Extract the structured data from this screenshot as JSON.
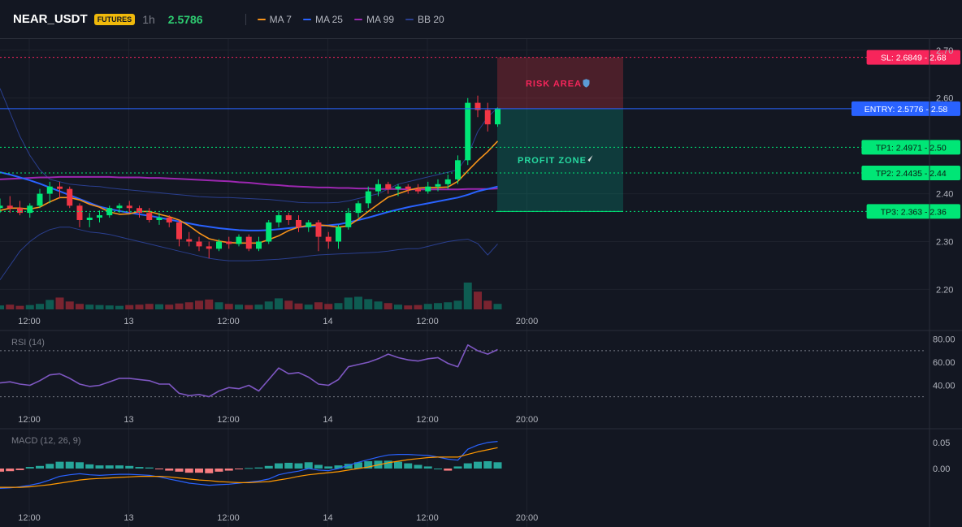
{
  "header": {
    "symbol": "NEAR_USDT",
    "badge": "FUTURES",
    "timeframe": "1h",
    "last_price": "2.5786"
  },
  "legend": [
    {
      "label": "MA 7",
      "color": "#f7931a"
    },
    {
      "label": "MA 25",
      "color": "#2962ff"
    },
    {
      "label": "MA 99",
      "color": "#9c27b0"
    },
    {
      "label": "BB 20",
      "color": "#2a3f8f"
    }
  ],
  "colors": {
    "up": "#26a69a",
    "up_bright": "#00e676",
    "down": "#f23645",
    "background": "#131722"
  },
  "levels": [
    {
      "label": "SL: 2.6849 - 2.68",
      "value": 2.6849,
      "color": "#f7255b",
      "style": "dotted"
    },
    {
      "label": "ENTRY: 2.5776 - 2.58",
      "value": 2.5776,
      "color": "#2962ff",
      "style": "solid"
    },
    {
      "label": "TP1: 2.4971 - 2.50",
      "value": 2.4971,
      "color": "#00e676",
      "style": "dotted"
    },
    {
      "label": "TP2: 2.4435 - 2.44",
      "value": 2.4435,
      "color": "#00e676",
      "style": "dotted"
    },
    {
      "label": "TP3: 2.363 - 2.36",
      "value": 2.363,
      "color": "#00e676",
      "style": "dotted"
    }
  ],
  "zones": {
    "risk_label": "RISK AREA",
    "profit_label": "PROFIT ZONE",
    "risk_range": [
      2.5776,
      2.6849
    ],
    "profit_range": [
      2.363,
      2.5776
    ]
  },
  "time_labels": [
    "12:00",
    "13",
    "12:00",
    "14",
    "12:00",
    "20:00"
  ],
  "time_label_index": [
    0,
    10,
    20,
    30,
    40,
    50
  ],
  "price_ticks": [
    "2.20",
    "2.30",
    "2.40",
    "2.60",
    "2.70"
  ],
  "rsi": {
    "title": "RSI (14)",
    "ticks": [
      "40.00",
      "60.00",
      "80.00"
    ],
    "levels": [
      30,
      70
    ]
  },
  "macd": {
    "title": "MACD (12, 26, 9)",
    "ticks": [
      "0.00",
      "0.05"
    ]
  },
  "chart_data": {
    "type": "candlestick",
    "title": "",
    "ylim": [
      2.16,
      2.72
    ],
    "candles": [
      {
        "o": 2.37,
        "h": 2.39,
        "l": 2.36,
        "c": 2.375
      },
      {
        "o": 2.375,
        "h": 2.395,
        "l": 2.36,
        "c": 2.37
      },
      {
        "o": 2.37,
        "h": 2.385,
        "l": 2.355,
        "c": 2.36
      },
      {
        "o": 2.36,
        "h": 2.38,
        "l": 2.35,
        "c": 2.375
      },
      {
        "o": 2.375,
        "h": 2.41,
        "l": 2.37,
        "c": 2.4
      },
      {
        "o": 2.4,
        "h": 2.425,
        "l": 2.38,
        "c": 2.415
      },
      {
        "o": 2.415,
        "h": 2.425,
        "l": 2.39,
        "c": 2.41
      },
      {
        "o": 2.41,
        "h": 2.415,
        "l": 2.37,
        "c": 2.375
      },
      {
        "o": 2.375,
        "h": 2.38,
        "l": 2.33,
        "c": 2.345
      },
      {
        "o": 2.345,
        "h": 2.36,
        "l": 2.33,
        "c": 2.35
      },
      {
        "o": 2.35,
        "h": 2.365,
        "l": 2.34,
        "c": 2.355
      },
      {
        "o": 2.355,
        "h": 2.375,
        "l": 2.35,
        "c": 2.37
      },
      {
        "o": 2.37,
        "h": 2.38,
        "l": 2.36,
        "c": 2.375
      },
      {
        "o": 2.375,
        "h": 2.385,
        "l": 2.36,
        "c": 2.37
      },
      {
        "o": 2.37,
        "h": 2.375,
        "l": 2.35,
        "c": 2.36
      },
      {
        "o": 2.36,
        "h": 2.37,
        "l": 2.34,
        "c": 2.345
      },
      {
        "o": 2.345,
        "h": 2.36,
        "l": 2.335,
        "c": 2.35
      },
      {
        "o": 2.35,
        "h": 2.355,
        "l": 2.33,
        "c": 2.34
      },
      {
        "o": 2.34,
        "h": 2.345,
        "l": 2.29,
        "c": 2.305
      },
      {
        "o": 2.305,
        "h": 2.32,
        "l": 2.29,
        "c": 2.3
      },
      {
        "o": 2.3,
        "h": 2.31,
        "l": 2.28,
        "c": 2.29
      },
      {
        "o": 2.29,
        "h": 2.3,
        "l": 2.265,
        "c": 2.285
      },
      {
        "o": 2.285,
        "h": 2.305,
        "l": 2.28,
        "c": 2.3
      },
      {
        "o": 2.3,
        "h": 2.31,
        "l": 2.285,
        "c": 2.295
      },
      {
        "o": 2.295,
        "h": 2.315,
        "l": 2.29,
        "c": 2.31
      },
      {
        "o": 2.31,
        "h": 2.315,
        "l": 2.28,
        "c": 2.285
      },
      {
        "o": 2.285,
        "h": 2.31,
        "l": 2.28,
        "c": 2.3
      },
      {
        "o": 2.3,
        "h": 2.345,
        "l": 2.295,
        "c": 2.34
      },
      {
        "o": 2.34,
        "h": 2.365,
        "l": 2.33,
        "c": 2.355
      },
      {
        "o": 2.355,
        "h": 2.36,
        "l": 2.335,
        "c": 2.345
      },
      {
        "o": 2.345,
        "h": 2.355,
        "l": 2.32,
        "c": 2.33
      },
      {
        "o": 2.33,
        "h": 2.345,
        "l": 2.32,
        "c": 2.34
      },
      {
        "o": 2.34,
        "h": 2.345,
        "l": 2.28,
        "c": 2.31
      },
      {
        "o": 2.31,
        "h": 2.32,
        "l": 2.285,
        "c": 2.3
      },
      {
        "o": 2.3,
        "h": 2.335,
        "l": 2.285,
        "c": 2.33
      },
      {
        "o": 2.33,
        "h": 2.37,
        "l": 2.325,
        "c": 2.36
      },
      {
        "o": 2.36,
        "h": 2.385,
        "l": 2.35,
        "c": 2.38
      },
      {
        "o": 2.38,
        "h": 2.415,
        "l": 2.37,
        "c": 2.405
      },
      {
        "o": 2.405,
        "h": 2.43,
        "l": 2.395,
        "c": 2.42
      },
      {
        "o": 2.42,
        "h": 2.425,
        "l": 2.4,
        "c": 2.41
      },
      {
        "o": 2.41,
        "h": 2.42,
        "l": 2.395,
        "c": 2.415
      },
      {
        "o": 2.415,
        "h": 2.42,
        "l": 2.4,
        "c": 2.41
      },
      {
        "o": 2.41,
        "h": 2.42,
        "l": 2.4,
        "c": 2.405
      },
      {
        "o": 2.405,
        "h": 2.425,
        "l": 2.4,
        "c": 2.415
      },
      {
        "o": 2.415,
        "h": 2.43,
        "l": 2.405,
        "c": 2.42
      },
      {
        "o": 2.42,
        "h": 2.44,
        "l": 2.41,
        "c": 2.43
      },
      {
        "o": 2.43,
        "h": 2.48,
        "l": 2.42,
        "c": 2.47
      },
      {
        "o": 2.47,
        "h": 2.6,
        "l": 2.46,
        "c": 2.59
      },
      {
        "o": 2.59,
        "h": 2.605,
        "l": 2.56,
        "c": 2.575
      },
      {
        "o": 2.575,
        "h": 2.59,
        "l": 2.53,
        "c": 2.545
      },
      {
        "o": 2.545,
        "h": 2.58,
        "l": 2.54,
        "c": 2.5786
      }
    ],
    "volume": [
      10,
      12,
      9,
      11,
      14,
      24,
      30,
      20,
      14,
      12,
      11,
      10,
      9,
      11,
      12,
      14,
      13,
      12,
      15,
      18,
      22,
      25,
      18,
      14,
      12,
      11,
      12,
      20,
      28,
      22,
      15,
      12,
      18,
      14,
      16,
      30,
      32,
      26,
      20,
      16,
      12,
      10,
      11,
      14,
      16,
      18,
      22,
      68,
      45,
      22,
      14
    ],
    "ma7": [
      2.365,
      2.37,
      2.37,
      2.368,
      2.372,
      2.383,
      2.392,
      2.392,
      2.387,
      2.378,
      2.372,
      2.362,
      2.357,
      2.358,
      2.363,
      2.363,
      2.357,
      2.352,
      2.345,
      2.333,
      2.318,
      2.306,
      2.301,
      2.298,
      2.297,
      2.297,
      2.297,
      2.304,
      2.312,
      2.323,
      2.33,
      2.334,
      2.335,
      2.333,
      2.33,
      2.333,
      2.347,
      2.363,
      2.378,
      2.393,
      2.4,
      2.407,
      2.412,
      2.413,
      2.413,
      2.414,
      2.426,
      2.448,
      2.469,
      2.488,
      2.51
    ],
    "ma25": [
      2.445,
      2.44,
      2.434,
      2.428,
      2.421,
      2.413,
      2.405,
      2.397,
      2.389,
      2.381,
      2.373,
      2.368,
      2.364,
      2.36,
      2.357,
      2.354,
      2.35,
      2.346,
      2.342,
      2.338,
      2.334,
      2.331,
      2.328,
      2.326,
      2.324,
      2.323,
      2.323,
      2.324,
      2.326,
      2.328,
      2.33,
      2.332,
      2.333,
      2.334,
      2.336,
      2.34,
      2.345,
      2.35,
      2.356,
      2.362,
      2.367,
      2.372,
      2.376,
      2.38,
      2.384,
      2.388,
      2.392,
      2.398,
      2.405,
      2.41,
      2.415
    ],
    "ma99": [
      2.43,
      2.431,
      2.432,
      2.433,
      2.434,
      2.434,
      2.435,
      2.435,
      2.435,
      2.435,
      2.435,
      2.435,
      2.434,
      2.434,
      2.434,
      2.433,
      2.433,
      2.432,
      2.431,
      2.43,
      2.429,
      2.428,
      2.427,
      2.426,
      2.424,
      2.423,
      2.421,
      2.419,
      2.418,
      2.416,
      2.415,
      2.414,
      2.413,
      2.413,
      2.412,
      2.412,
      2.411,
      2.411,
      2.41,
      2.41,
      2.41,
      2.409,
      2.409,
      2.409,
      2.409,
      2.409,
      2.409,
      2.41,
      2.41,
      2.41,
      2.411
    ],
    "bb_upper": [
      2.62,
      2.57,
      2.52,
      2.48,
      2.45,
      2.43,
      2.425,
      2.42,
      2.418,
      2.416,
      2.415,
      2.412,
      2.41,
      2.408,
      2.406,
      2.404,
      2.402,
      2.4,
      2.398,
      2.396,
      2.394,
      2.393,
      2.392,
      2.392,
      2.391,
      2.39,
      2.389,
      2.388,
      2.386,
      2.384,
      2.382,
      2.381,
      2.381,
      2.381,
      2.382,
      2.385,
      2.39,
      2.395,
      2.4,
      2.41,
      2.42,
      2.425,
      2.43,
      2.435,
      2.44,
      2.445,
      2.45,
      2.48,
      2.53,
      2.56,
      2.58
    ],
    "bb_lower": [
      2.22,
      2.25,
      2.28,
      2.3,
      2.315,
      2.325,
      2.33,
      2.33,
      2.325,
      2.32,
      2.318,
      2.315,
      2.31,
      2.305,
      2.3,
      2.295,
      2.29,
      2.285,
      2.28,
      2.275,
      2.27,
      2.265,
      2.262,
      2.26,
      2.26,
      2.26,
      2.261,
      2.262,
      2.263,
      2.265,
      2.267,
      2.27,
      2.272,
      2.273,
      2.274,
      2.275,
      2.276,
      2.277,
      2.278,
      2.28,
      2.283,
      2.285,
      2.285,
      2.29,
      2.295,
      2.3,
      2.303,
      2.305,
      2.296,
      2.272,
      2.295
    ],
    "rsi": [
      42,
      43,
      41,
      40,
      44,
      49,
      50,
      46,
      41,
      39,
      40,
      43,
      46,
      46,
      45,
      44,
      41,
      41,
      33,
      31,
      32,
      30,
      35,
      38,
      37,
      40,
      35,
      45,
      55,
      50,
      51,
      47,
      41,
      40,
      45,
      56,
      58,
      60,
      63,
      67,
      64,
      62,
      61,
      63,
      64,
      59,
      56,
      75,
      70,
      67,
      71
    ],
    "macd": [
      -0.038,
      -0.037,
      -0.035,
      -0.032,
      -0.028,
      -0.022,
      -0.015,
      -0.012,
      -0.01,
      -0.012,
      -0.013,
      -0.012,
      -0.011,
      -0.011,
      -0.012,
      -0.013,
      -0.016,
      -0.02,
      -0.024,
      -0.028,
      -0.03,
      -0.032,
      -0.031,
      -0.03,
      -0.028,
      -0.026,
      -0.024,
      -0.02,
      -0.012,
      -0.008,
      -0.005,
      0.0,
      -0.003,
      -0.004,
      0.0,
      0.006,
      0.012,
      0.017,
      0.022,
      0.026,
      0.027,
      0.027,
      0.026,
      0.025,
      0.022,
      0.018,
      0.016,
      0.037,
      0.045,
      0.05,
      0.052
    ],
    "signal": [
      -0.036,
      -0.036,
      -0.036,
      -0.035,
      -0.033,
      -0.031,
      -0.028,
      -0.025,
      -0.022,
      -0.02,
      -0.019,
      -0.018,
      -0.017,
      -0.016,
      -0.015,
      -0.015,
      -0.015,
      -0.016,
      -0.018,
      -0.02,
      -0.022,
      -0.023,
      -0.025,
      -0.026,
      -0.027,
      -0.027,
      -0.026,
      -0.025,
      -0.022,
      -0.019,
      -0.015,
      -0.012,
      -0.01,
      -0.008,
      -0.006,
      -0.003,
      0.0,
      0.003,
      0.007,
      0.011,
      0.014,
      0.017,
      0.019,
      0.021,
      0.022,
      0.022,
      0.022,
      0.027,
      0.032,
      0.036,
      0.04
    ],
    "hist": [
      -0.006,
      -0.005,
      -0.003,
      0.003,
      0.005,
      0.009,
      0.013,
      0.013,
      0.012,
      0.008,
      0.006,
      0.006,
      0.006,
      0.005,
      0.003,
      0.002,
      -0.001,
      -0.004,
      -0.006,
      -0.008,
      -0.008,
      -0.009,
      -0.006,
      -0.004,
      -0.001,
      0.001,
      0.002,
      0.005,
      0.01,
      0.011,
      0.01,
      0.012,
      0.007,
      0.004,
      0.006,
      0.009,
      0.012,
      0.014,
      0.015,
      0.015,
      0.013,
      0.01,
      0.007,
      0.004,
      0.0,
      -0.004,
      0.004,
      0.01,
      0.013,
      0.014,
      0.012
    ]
  }
}
